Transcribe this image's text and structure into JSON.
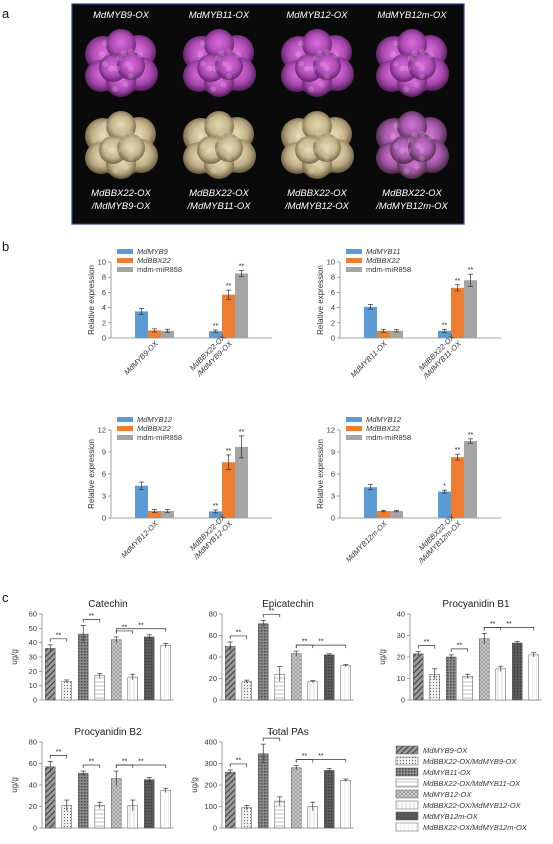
{
  "panels": {
    "a": "a",
    "b": "b",
    "c": "c"
  },
  "photo_panel": {
    "top_labels": [
      "MdMYB9-OX",
      "MdMYB11-OX",
      "MdMYB12-OX",
      "MdMYB12m-OX"
    ],
    "bottom_labels": [
      [
        "MdBBX22-OX",
        "/MdMYB9-OX"
      ],
      [
        "MdBBX22-OX",
        "/MdMYB11-OX"
      ],
      [
        "MdBBX22-OX",
        "/MdMYB12-OX"
      ],
      [
        "MdBBX22-OX",
        "/MdMYB12m-OX"
      ]
    ],
    "colors": {
      "background": "#0a0a0a",
      "border": "#2b3f8a",
      "top_callus": "#b04cb8",
      "bottom_callus": "#c8b78c",
      "bottom_callus_purple": "#a85ab0"
    }
  },
  "expression_charts": [
    {
      "id": "b1",
      "ylabel": "Relative expression",
      "y_ticks": [
        "0",
        "2",
        "4",
        "6",
        "8",
        "10"
      ],
      "ylim": [
        0,
        10
      ],
      "legend": [
        "MdMYB9",
        "MdBBX22",
        "mdm-miR858"
      ],
      "groups": [
        {
          "label": [
            "MdMYB9-OX"
          ],
          "values": [
            3.5,
            1.0,
            0.95
          ],
          "errors": [
            0.4,
            0.2,
            0.2
          ],
          "stars": [
            "",
            "",
            ""
          ]
        },
        {
          "label": [
            "MdBBX22-OX",
            "/MdMYB9-OX"
          ],
          "values": [
            0.9,
            5.7,
            8.5
          ],
          "errors": [
            0.15,
            0.6,
            0.4
          ],
          "stars": [
            "**",
            "**",
            "**"
          ]
        }
      ]
    },
    {
      "id": "b2",
      "ylabel": "Relative expression",
      "y_ticks": [
        "0",
        "2",
        "4",
        "6",
        "8",
        "10"
      ],
      "ylim": [
        0,
        10
      ],
      "legend": [
        "MdMYB11",
        "MdBBX22",
        "mdm-miR858"
      ],
      "groups": [
        {
          "label": [
            "MdMYB11-OX"
          ],
          "values": [
            4.1,
            0.95,
            0.95
          ],
          "errors": [
            0.3,
            0.2,
            0.15
          ],
          "stars": [
            "",
            "",
            ""
          ]
        },
        {
          "label": [
            "MdBBX22-OX",
            "/MdMYB11-OX"
          ],
          "values": [
            0.95,
            6.6,
            7.6
          ],
          "errors": [
            0.2,
            0.4,
            0.8
          ],
          "stars": [
            "**",
            "**",
            "**"
          ]
        }
      ]
    },
    {
      "id": "b3",
      "ylabel": "Relative expression",
      "y_ticks": [
        "0",
        "3",
        "6",
        "9",
        "12"
      ],
      "ylim": [
        0,
        12
      ],
      "legend": [
        "MdMYB12",
        "MdBBX22",
        "mdm-miR858"
      ],
      "groups": [
        {
          "label": [
            "MdMYB12-OX"
          ],
          "values": [
            4.4,
            0.95,
            0.95
          ],
          "errors": [
            0.5,
            0.2,
            0.2
          ],
          "stars": [
            "",
            "",
            ""
          ]
        },
        {
          "label": [
            "MdBBX22-OX",
            "/MdMYB12-OX"
          ],
          "values": [
            0.9,
            7.6,
            9.7
          ],
          "errors": [
            0.2,
            1.0,
            1.5
          ],
          "stars": [
            "**",
            "**",
            "**"
          ]
        }
      ]
    },
    {
      "id": "b4",
      "ylabel": "Relative expression",
      "y_ticks": [
        "0",
        "3",
        "6",
        "9",
        "12"
      ],
      "ylim": [
        0,
        12
      ],
      "legend": [
        "MdMYB12",
        "MdBBX22",
        "mdm-miR858"
      ],
      "groups": [
        {
          "label": [
            "MdMYB12m-OX"
          ],
          "values": [
            4.2,
            0.95,
            0.95
          ],
          "errors": [
            0.35,
            0.1,
            0.1
          ],
          "stars": [
            "",
            "",
            ""
          ]
        },
        {
          "label": [
            "MdBBX22-OX",
            "/MdMYB12m-OX"
          ],
          "values": [
            3.6,
            8.3,
            10.5
          ],
          "errors": [
            0.2,
            0.4,
            0.3
          ],
          "stars": [
            "*",
            "**",
            "**"
          ]
        }
      ]
    }
  ],
  "expression_colors": [
    "#5b9bd5",
    "#ed7d31",
    "#a5a5a5"
  ],
  "pa_charts": [
    {
      "id": "c1",
      "title": "Catechin",
      "ylabel": "ug/g",
      "y_ticks": [
        "0",
        "10",
        "20",
        "30",
        "40",
        "50",
        "60"
      ],
      "ylim": [
        0,
        60
      ],
      "values": [
        36,
        13,
        46,
        17,
        42,
        16,
        44,
        38
      ],
      "errors": [
        2.5,
        1,
        6,
        1.5,
        2,
        2,
        1.5,
        1.5
      ]
    },
    {
      "id": "c2",
      "title": "Epicatechin",
      "ylabel": "",
      "y_ticks": [
        "0",
        "20",
        "40",
        "60",
        "80"
      ],
      "ylim": [
        0,
        80
      ],
      "values": [
        50,
        17,
        71,
        24,
        43,
        17,
        42,
        32
      ],
      "errors": [
        4,
        1.5,
        3,
        7,
        2.5,
        1,
        1,
        1
      ]
    },
    {
      "id": "c3",
      "title": "Procyanidin B1",
      "ylabel": "ug/g",
      "y_ticks": [
        "0",
        "10",
        "20",
        "30",
        "40"
      ],
      "ylim": [
        0,
        40
      ],
      "values": [
        21.5,
        12,
        20,
        11,
        28.5,
        14.5,
        26.5,
        21
      ],
      "errors": [
        1,
        2.5,
        1,
        1,
        2.5,
        1.2,
        0.8,
        1
      ]
    },
    {
      "id": "c4",
      "title": "Procyanidin B2",
      "ylabel": "ug/g",
      "y_ticks": [
        "0",
        "20",
        "40",
        "60",
        "80"
      ],
      "ylim": [
        0,
        80
      ],
      "values": [
        57,
        21,
        51,
        21,
        46,
        21,
        45,
        35
      ],
      "errors": [
        5,
        5,
        2,
        3,
        7,
        5,
        2,
        2
      ]
    },
    {
      "id": "c5",
      "title": "Total PAs",
      "ylabel": "ug/g",
      "y_ticks": [
        "0",
        "100",
        "200",
        "300",
        "400"
      ],
      "ylim": [
        0,
        400
      ],
      "values": [
        260,
        95,
        345,
        125,
        280,
        100,
        268,
        222
      ],
      "errors": [
        10,
        10,
        45,
        20,
        10,
        20,
        8,
        6
      ]
    }
  ],
  "pa_legend": [
    "MdMYB9-OX",
    "MdBBX22-OX/MdMYB9-OX",
    "MdMYB11-OX",
    "MdBBX22-OX/MdMYB11-OX",
    "MdMYB12-OX",
    "MdBBX22-OX/MdMYB12-OX",
    "MdMYB12m-OX",
    "MdBBX22-OX/MdMYB12m-OX"
  ],
  "significance_mark": "**"
}
